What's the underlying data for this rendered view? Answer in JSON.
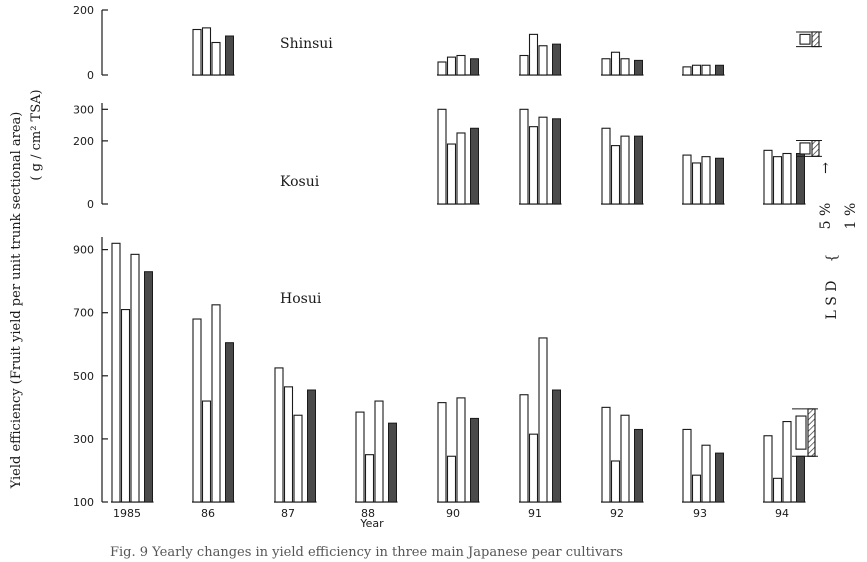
{
  "chart_data": {
    "type": "bar",
    "ylabel": "Yield efficiency (Fruit yield per unit trunk sectional area)",
    "yunit": "( g / cm² TSA)",
    "xlabel": "Year",
    "categories": [
      "1985",
      "86",
      "87",
      "88",
      "90",
      "91",
      "92",
      "93",
      "94"
    ],
    "caption": "Fig. 9   Yearly changes in yield efficiency in three main Japanese pear cultivars",
    "lsd": {
      "label": "L S D",
      "levels": [
        "5 %",
        "1 %"
      ]
    },
    "panels": [
      {
        "cultivar": "Shinsui",
        "ticks": [
          0,
          200
        ],
        "ylim": [
          0,
          200
        ],
        "groups": [
          {
            "category": "86",
            "open": [
              140,
              145,
              100
            ],
            "filled": 120
          },
          {
            "category": "90",
            "open": [
              40,
              55,
              60
            ],
            "filled": 50
          },
          {
            "category": "91",
            "open": [
              60,
              125,
              90
            ],
            "filled": 95
          },
          {
            "category": "92",
            "open": [
              50,
              70,
              50
            ],
            "filled": 45
          },
          {
            "category": "93",
            "open": [
              25,
              30,
              30
            ],
            "filled": 30
          }
        ],
        "lsd_5": 30,
        "lsd_1": 45
      },
      {
        "cultivar": "Kosui",
        "ticks": [
          0,
          200,
          300
        ],
        "ylim": [
          0,
          320
        ],
        "groups": [
          {
            "category": "90",
            "open": [
              300,
              190,
              225
            ],
            "filled": 240
          },
          {
            "category": "91",
            "open": [
              300,
              245,
              275
            ],
            "filled": 270
          },
          {
            "category": "92",
            "open": [
              240,
              185,
              215
            ],
            "filled": 215
          },
          {
            "category": "93",
            "open": [
              155,
              130,
              150
            ],
            "filled": 145
          },
          {
            "category": "94",
            "open": [
              170,
              150,
              160
            ],
            "filled": 160
          }
        ],
        "lsd_5": 35,
        "lsd_1": 50
      },
      {
        "cultivar": "Hosui",
        "ticks": [
          100,
          300,
          500,
          700,
          900
        ],
        "ylim": [
          100,
          940
        ],
        "groups": [
          {
            "category": "1985",
            "open": [
              920,
              710,
              885
            ],
            "filled": 830
          },
          {
            "category": "86",
            "open": [
              680,
              420,
              725
            ],
            "filled": 605
          },
          {
            "category": "87",
            "open": [
              525,
              465,
              375
            ],
            "filled": 455
          },
          {
            "category": "88",
            "open": [
              385,
              250,
              420
            ],
            "filled": 350
          },
          {
            "category": "90",
            "open": [
              415,
              245,
              430
            ],
            "filled": 365
          },
          {
            "category": "91",
            "open": [
              440,
              315,
              620
            ],
            "filled": 455
          },
          {
            "category": "92",
            "open": [
              400,
              230,
              375
            ],
            "filled": 330
          },
          {
            "category": "93",
            "open": [
              330,
              185,
              280
            ],
            "filled": 255
          },
          {
            "category": "94",
            "open": [
              310,
              175,
              355
            ],
            "filled": 245
          }
        ],
        "lsd_5": 105,
        "lsd_1": 150
      }
    ]
  }
}
